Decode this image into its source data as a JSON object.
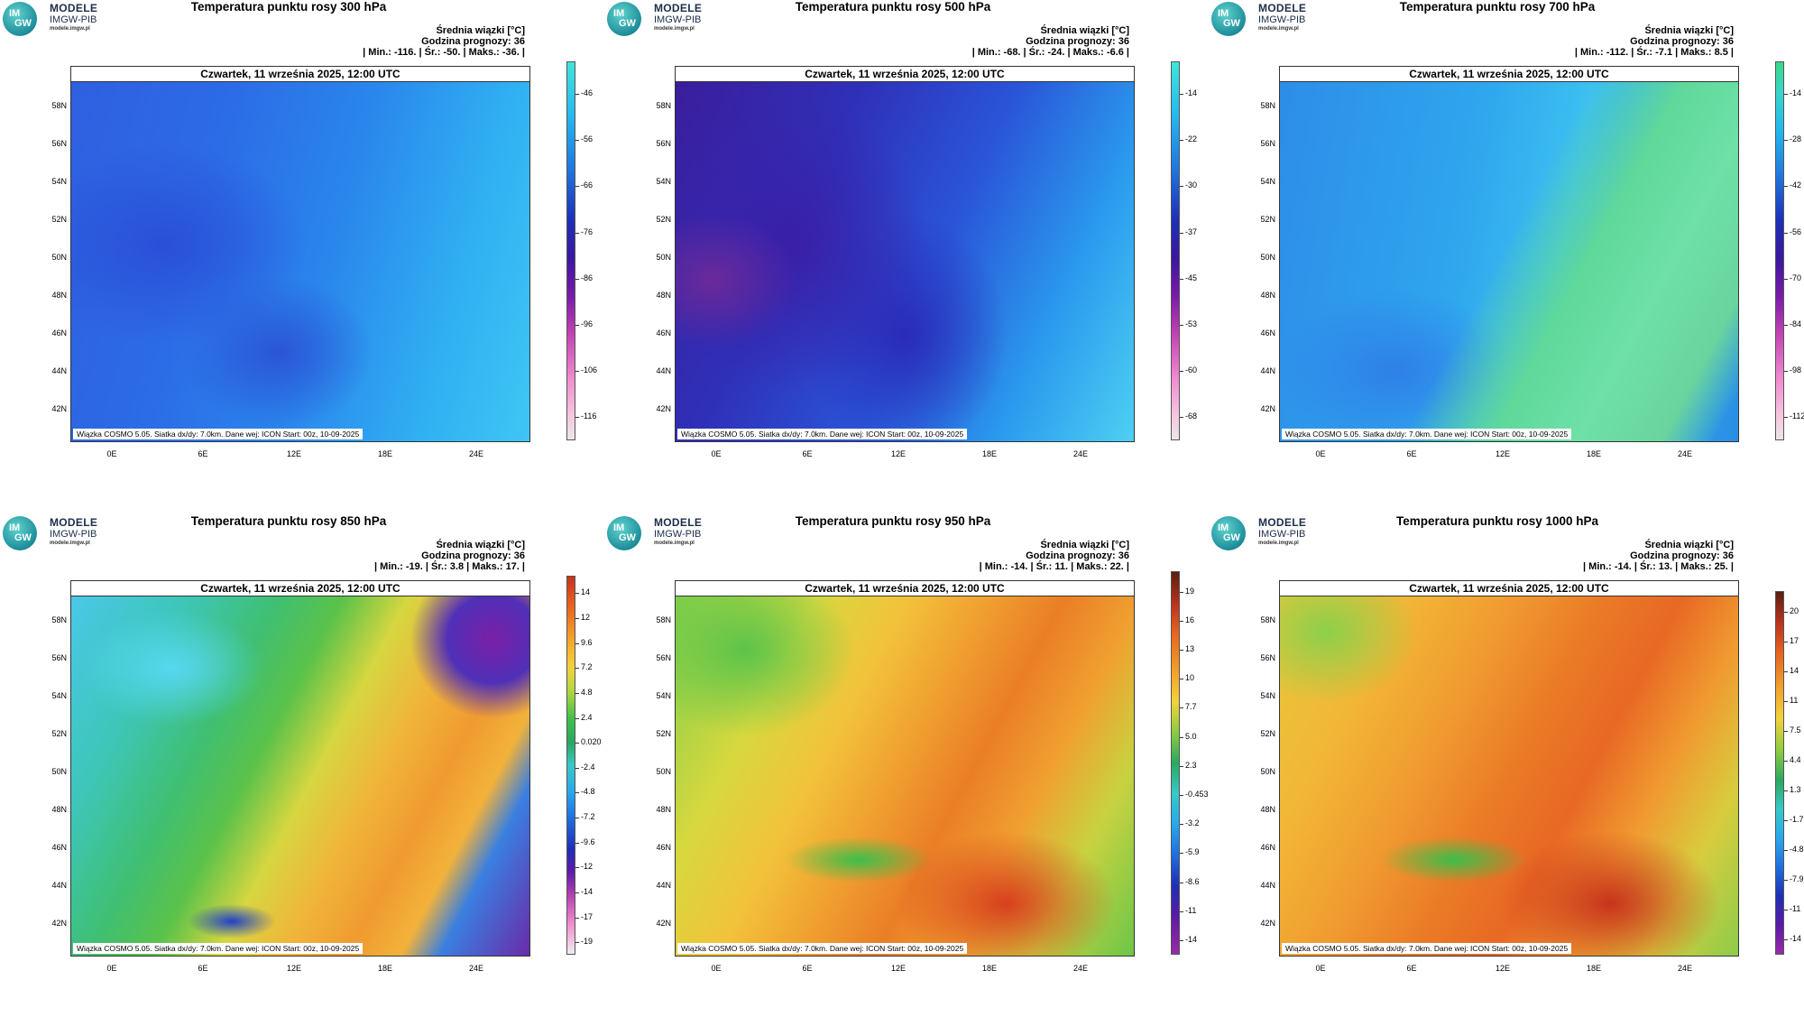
{
  "common": {
    "logo_line1": "MODELE",
    "logo_line2": "IMGW-PIB",
    "logo_line3": "modele.imgw.pl",
    "logo_badge_top": "IM",
    "logo_badge_bottom": "GW",
    "stat_line1": "Średnia wiązki [°C]",
    "stat_line2": "Godzina prognozy: 36",
    "date": "Czwartek, 11 września 2025, 12:00 UTC",
    "footer": "Wiązka COSMO 5.05. Siatka dx/dy: 7.0km. Dane wej: ICON Start: 00z, 10-09-2025",
    "lat_labels": [
      "58N",
      "56N",
      "54N",
      "52N",
      "50N",
      "48N",
      "46N",
      "44N",
      "42N"
    ],
    "lon_labels": [
      "0E",
      "6E",
      "12E",
      "18E",
      "24E"
    ]
  },
  "panels": [
    {
      "title": "Temperatura punktu rosy 300 hPa",
      "stats": "| Min.:   -116. | Śr.:   -50. | Maks.:   -36. |",
      "colorbar": [
        "-46",
        "-56",
        "-66",
        "-76",
        "-86",
        "-96",
        "-106",
        "-116"
      ],
      "palette": "cold"
    },
    {
      "title": "Temperatura punktu rosy 500 hPa",
      "stats": "| Min.:   -68. | Śr.:   -24. | Maks.:   -6.6 |",
      "colorbar": [
        "-14",
        "-22",
        "-30",
        "-37",
        "-45",
        "-53",
        "-60",
        "-68"
      ],
      "palette": "cold"
    },
    {
      "title": "Temperatura punktu rosy 700 hPa",
      "stats": "| Min.:   -112. | Śr.:   -7.1 | Maks.:   8.5 |",
      "colorbar": [
        "-14",
        "-28",
        "-42",
        "-56",
        "-70",
        "-84",
        "-98",
        "-112"
      ],
      "palette": "cold"
    },
    {
      "title": "Temperatura punktu rosy 850 hPa",
      "stats": "| Min.:   -19. | Śr.:   3.8 | Maks.:   17. |",
      "colorbar": [
        "14",
        "12",
        "9.6",
        "7.2",
        "4.8",
        "2.4",
        "0.020",
        "-2.4",
        "-4.8",
        "-7.2",
        "-9.6",
        "-12",
        "-14",
        "-17",
        "-19"
      ],
      "palette": "full"
    },
    {
      "title": "Temperatura punktu rosy 950 hPa",
      "stats": "| Min.:   -14. | Śr.:   11. | Maks.:   22. |",
      "colorbar": [
        "19",
        "16",
        "13",
        "10",
        "7.7",
        "5.0",
        "2.3",
        "-0.453",
        "-3.2",
        "-5.9",
        "-8.6",
        "-11",
        "-14"
      ],
      "palette": "full"
    },
    {
      "title": "Temperatura punktu rosy 1000 hPa",
      "stats": "| Min.:   -14. | Śr.:   13. | Maks.:   25. |",
      "colorbar": [
        "20",
        "17",
        "14",
        "11",
        "7.5",
        "4.4",
        "1.3",
        "-1.7",
        "-4.8",
        "-7.9",
        "-11",
        "-14"
      ],
      "palette": "full"
    }
  ]
}
